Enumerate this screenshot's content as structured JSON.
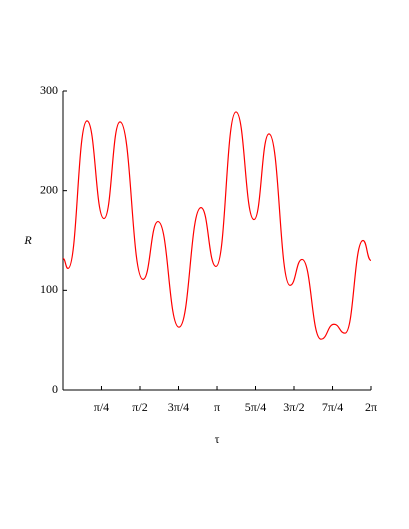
{
  "chart_data": {
    "type": "line",
    "x_label": "τ",
    "y_label": "R",
    "x": [
      0,
      0.102,
      0.49,
      0.836,
      1.163,
      1.632,
      1.938,
      2.366,
      2.815,
      3.121,
      3.529,
      3.896,
      4.202,
      4.631,
      4.876,
      5.263,
      5.529,
      5.753,
      6.12,
      6.283
    ],
    "series": [
      {
        "color": "#ff0000",
        "values": [
          132,
          122,
          270,
          172,
          269,
          111,
          169,
          63,
          183,
          124,
          279,
          171,
          257,
          105,
          131,
          51,
          66,
          57,
          150,
          130
        ]
      }
    ],
    "xlim": [
      0,
      6.283
    ],
    "ylim": [
      0,
      300
    ],
    "xticks": [
      {
        "value": 0.785,
        "label": "π/4"
      },
      {
        "value": 1.571,
        "label": "π/2"
      },
      {
        "value": 2.356,
        "label": "3π/4"
      },
      {
        "value": 3.142,
        "label": "π"
      },
      {
        "value": 3.927,
        "label": "5π/4"
      },
      {
        "value": 4.712,
        "label": "3π/2"
      },
      {
        "value": 5.498,
        "label": "7π/4"
      },
      {
        "value": 6.283,
        "label": "2π"
      }
    ],
    "yticks": [
      0,
      100,
      200,
      300
    ]
  }
}
